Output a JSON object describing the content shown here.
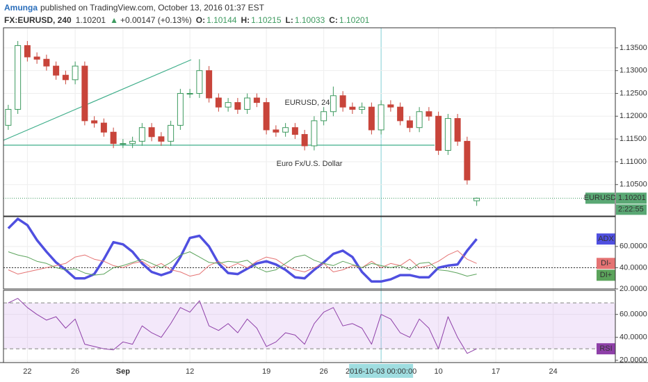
{
  "header": {
    "author": "Amunga",
    "published": "published on TradingView.com, October 13, 2016 01:37 EST",
    "symbol": "FX:EURUSD, 240",
    "price": "1.10201",
    "arrow": "▲",
    "change": "+0.00147 (+0.13%)",
    "o_label": "O:",
    "o": "1.10144",
    "h_label": "H:",
    "h": "1.10215",
    "l_label": "L:",
    "l": "1.10033",
    "c_label": "C:",
    "c": "1.10201"
  },
  "chart_data": [
    {
      "type": "candlestick",
      "watermark": "EURUSD, 240",
      "subtitle": "Euro Fx/U.S. Dollar",
      "symbol_tag": "EURUSD",
      "countdown": "2:22:55",
      "last_price": {
        "value": 1.10201,
        "label": "1.10201"
      },
      "up_color": "#3d9a5f",
      "down_color": "#c8443a",
      "grid": true,
      "crosshair_index": 39,
      "categories": [
        null,
        null,
        "22",
        null,
        null,
        null,
        null,
        "26",
        null,
        null,
        null,
        null,
        "Sep",
        null,
        null,
        null,
        null,
        null,
        null,
        "12",
        null,
        null,
        null,
        null,
        null,
        null,
        null,
        "19",
        null,
        null,
        null,
        null,
        null,
        "26",
        null,
        null,
        null,
        null,
        null,
        "2016-10-03 00:00:00",
        null,
        null,
        null,
        null,
        null,
        "10",
        null,
        null,
        null,
        null,
        null,
        "17",
        null,
        null,
        null,
        null,
        null,
        "24",
        null,
        null,
        null,
        null,
        null,
        null
      ],
      "open": [
        1.118,
        1.1215,
        1.1355,
        1.133,
        1.1325,
        1.131,
        1.129,
        1.128,
        1.131,
        1.119,
        1.1185,
        1.1165,
        1.114,
        1.114,
        1.1145,
        1.1175,
        1.1155,
        1.1145,
        1.118,
        1.125,
        1.125,
        1.13,
        1.124,
        1.122,
        1.123,
        1.1215,
        1.124,
        1.123,
        1.117,
        1.1165,
        1.1175,
        1.116,
        1.1135,
        1.119,
        1.121,
        1.1245,
        1.122,
        1.1215,
        1.122,
        1.117,
        1.1225,
        1.122,
        1.119,
        1.1175,
        1.121,
        1.12,
        1.1125,
        1.1195,
        1.1145,
        1.10144,
        null,
        null,
        null,
        null,
        null,
        null,
        null,
        null,
        null,
        null,
        null,
        null,
        null,
        null
      ],
      "high": [
        1.1225,
        1.1365,
        1.1365,
        1.134,
        1.1335,
        1.132,
        1.13,
        1.132,
        1.132,
        1.12,
        1.1195,
        1.1175,
        1.115,
        1.1155,
        1.1185,
        1.1185,
        1.1165,
        1.119,
        1.126,
        1.126,
        1.1325,
        1.131,
        1.125,
        1.124,
        1.124,
        1.125,
        1.125,
        1.124,
        1.118,
        1.1185,
        1.1185,
        1.117,
        1.12,
        1.122,
        1.1265,
        1.1255,
        1.123,
        1.123,
        1.123,
        1.1235,
        1.1235,
        1.123,
        1.12,
        1.122,
        1.122,
        1.121,
        1.1205,
        1.1205,
        1.1155,
        1.10215,
        null,
        null,
        null,
        null,
        null,
        null,
        null,
        null,
        null,
        null,
        null,
        null,
        null,
        null
      ],
      "low": [
        1.117,
        1.1205,
        1.132,
        1.1315,
        1.13,
        1.128,
        1.127,
        1.127,
        1.118,
        1.1175,
        1.1155,
        1.113,
        1.113,
        1.113,
        1.1135,
        1.1145,
        1.1135,
        1.1135,
        1.117,
        1.124,
        1.124,
        1.123,
        1.121,
        1.121,
        1.1205,
        1.1205,
        1.122,
        1.116,
        1.1155,
        1.1155,
        1.115,
        1.1125,
        1.1125,
        1.118,
        1.12,
        1.121,
        1.1205,
        1.1205,
        1.116,
        1.116,
        1.121,
        1.118,
        1.1165,
        1.1165,
        1.119,
        1.1115,
        1.1115,
        1.1135,
        1.105,
        1.10033,
        null,
        null,
        null,
        null,
        null,
        null,
        null,
        null,
        null,
        null,
        null,
        null,
        null,
        null
      ],
      "close": [
        1.1215,
        1.1355,
        1.133,
        1.1325,
        1.131,
        1.129,
        1.128,
        1.131,
        1.119,
        1.1185,
        1.1165,
        1.114,
        1.114,
        1.1145,
        1.1175,
        1.1155,
        1.1145,
        1.118,
        1.125,
        1.125,
        1.13,
        1.124,
        1.122,
        1.123,
        1.1215,
        1.124,
        1.123,
        1.117,
        1.1165,
        1.1175,
        1.116,
        1.1135,
        1.119,
        1.121,
        1.1245,
        1.122,
        1.1215,
        1.122,
        1.117,
        1.1225,
        1.122,
        1.119,
        1.1175,
        1.121,
        1.12,
        1.1125,
        1.1195,
        1.1145,
        1.106,
        1.10201,
        null,
        null,
        null,
        null,
        null,
        null,
        null,
        null,
        null,
        null,
        null,
        null,
        null,
        null
      ],
      "ylim": [
        1.0981,
        1.1394
      ],
      "yticks": [
        {
          "value": 1.135,
          "label": "1.13500"
        },
        {
          "value": 1.13,
          "label": "1.13000"
        },
        {
          "value": 1.125,
          "label": "1.12500"
        },
        {
          "value": 1.12,
          "label": "1.12000"
        },
        {
          "value": 1.115,
          "label": "1.11500"
        },
        {
          "value": 1.11,
          "label": "1.11000"
        },
        {
          "value": 1.105,
          "label": "1.10500"
        }
      ]
    },
    {
      "type": "line",
      "level": 40,
      "ylim": [
        20,
        88
      ],
      "yticks": [
        {
          "value": 60,
          "label": "60.0000"
        },
        {
          "value": 40,
          "label": "40.0000"
        },
        {
          "value": 20,
          "label": "20.0000"
        }
      ],
      "series": [
        {
          "name": "ADX",
          "color": "#4f4fe0",
          "width": 3.5,
          "values": [
            77,
            86,
            80,
            66,
            55,
            45,
            38,
            30,
            30,
            34,
            48,
            64,
            62,
            55,
            44,
            36,
            33,
            36,
            50,
            68,
            70,
            60,
            44,
            35,
            34,
            39,
            44,
            46,
            43,
            38,
            31,
            30,
            38,
            45,
            53,
            56,
            50,
            36,
            27,
            27,
            29,
            33,
            33,
            31,
            31,
            40,
            42,
            43,
            56,
            67,
            null,
            null,
            null,
            null,
            null,
            null,
            null,
            null,
            null,
            null,
            null,
            null,
            null,
            null
          ]
        },
        {
          "name": "DI-",
          "color": "#e57373",
          "width": 1,
          "values": [
            38,
            34,
            36,
            38,
            40,
            42,
            44,
            50,
            52,
            48,
            46,
            42,
            40,
            44,
            46,
            40,
            44,
            38,
            36,
            32,
            34,
            42,
            46,
            40,
            44,
            40,
            46,
            50,
            48,
            42,
            38,
            36,
            40,
            44,
            36,
            38,
            42,
            40,
            46,
            40,
            44,
            42,
            48,
            40,
            42,
            46,
            52,
            56,
            48,
            44,
            null,
            null,
            null,
            null,
            null,
            null,
            null,
            null,
            null,
            null,
            null,
            null,
            null,
            null
          ]
        },
        {
          "name": "DI+",
          "color": "#5ba35b",
          "width": 1,
          "values": [
            55,
            52,
            50,
            46,
            44,
            40,
            38,
            39,
            35,
            33,
            34,
            40,
            42,
            45,
            48,
            44,
            40,
            45,
            52,
            55,
            50,
            45,
            44,
            46,
            45,
            47,
            40,
            36,
            38,
            44,
            50,
            52,
            47,
            44,
            42,
            46,
            43,
            40,
            44,
            42,
            40,
            42,
            38,
            44,
            45,
            38,
            37,
            35,
            32,
            34,
            null,
            null,
            null,
            null,
            null,
            null,
            null,
            null,
            null,
            null,
            null,
            null,
            null,
            null
          ]
        }
      ]
    },
    {
      "type": "line",
      "band": [
        30,
        70
      ],
      "ylim": [
        18,
        81
      ],
      "yticks": [
        {
          "value": 60,
          "label": "60.0000"
        },
        {
          "value": 40,
          "label": "40.0000"
        },
        {
          "value": 20,
          "label": "20.0000"
        }
      ],
      "series": [
        {
          "name": "RSI",
          "color": "#8e3fa8",
          "width": 1,
          "values": [
            70,
            74,
            66,
            60,
            55,
            58,
            48,
            56,
            34,
            32,
            30,
            29,
            36,
            34,
            50,
            44,
            40,
            52,
            66,
            62,
            72,
            50,
            46,
            52,
            44,
            56,
            48,
            32,
            36,
            44,
            42,
            34,
            52,
            62,
            66,
            50,
            52,
            48,
            34,
            60,
            56,
            44,
            40,
            56,
            48,
            30,
            58,
            40,
            26,
            30,
            null,
            null,
            null,
            null,
            null,
            null,
            null,
            null,
            null,
            null,
            null,
            null,
            null,
            null
          ]
        }
      ]
    }
  ]
}
